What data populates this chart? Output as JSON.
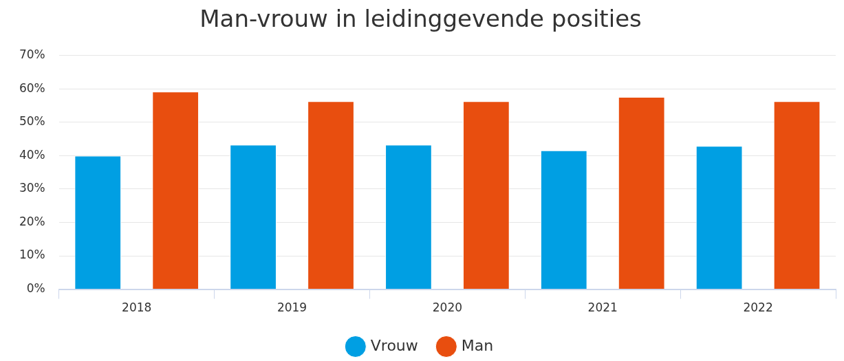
{
  "chart_data": {
    "type": "bar",
    "title": "Man-vrouw in leidinggevende posities",
    "categories": [
      "2018",
      "2019",
      "2020",
      "2021",
      "2022"
    ],
    "series": [
      {
        "name": "Vrouw",
        "color": "#009fe3",
        "values": [
          40,
          43.3,
          43.3,
          41.6,
          42.9
        ]
      },
      {
        "name": "Man",
        "color": "#e84e0f",
        "values": [
          59.2,
          56.3,
          56.3,
          57.6,
          56.3
        ]
      }
    ],
    "ylim": [
      0,
      70
    ],
    "yticks": [
      {
        "value": 0,
        "label": "0%"
      },
      {
        "value": 10,
        "label": "10%"
      },
      {
        "value": 20,
        "label": "20%"
      },
      {
        "value": 30,
        "label": "30%"
      },
      {
        "value": 40,
        "label": "40%"
      },
      {
        "value": 50,
        "label": "50%"
      },
      {
        "value": 60,
        "label": "60%"
      },
      {
        "value": 70,
        "label": "70%"
      }
    ],
    "grid": "y",
    "legend": "bottom"
  }
}
